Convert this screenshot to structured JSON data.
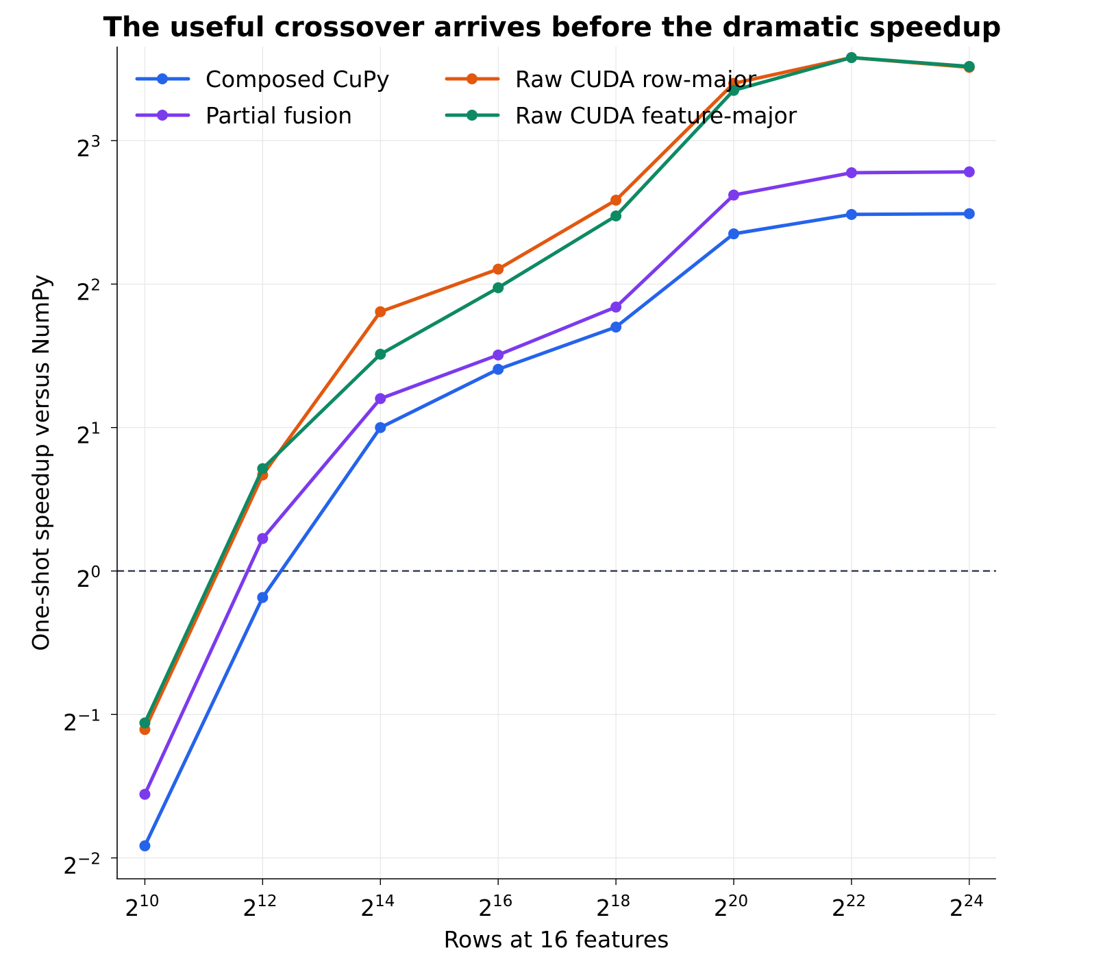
{
  "chart_data": {
    "type": "line",
    "title": "The useful crossover arrives before the dramatic speedup",
    "xlabel": "Rows at 16 features",
    "ylabel": "One-shot speedup versus NumPy",
    "x_scale": "log2",
    "y_scale": "log2",
    "x": [
      1024,
      4096,
      16384,
      65536,
      262144,
      1048576,
      4194304,
      16777216
    ],
    "x_tick_labels": [
      {
        "base": "2",
        "exp": "10"
      },
      {
        "base": "2",
        "exp": "12"
      },
      {
        "base": "2",
        "exp": "14"
      },
      {
        "base": "2",
        "exp": "16"
      },
      {
        "base": "2",
        "exp": "18"
      },
      {
        "base": "2",
        "exp": "20"
      },
      {
        "base": "2",
        "exp": "22"
      },
      {
        "base": "2",
        "exp": "24"
      }
    ],
    "y_ticks": [
      0.25,
      0.5,
      1,
      2,
      4,
      8
    ],
    "y_tick_labels": [
      {
        "base": "2",
        "exp": "−2"
      },
      {
        "base": "2",
        "exp": "−1"
      },
      {
        "base": "2",
        "exp": "0"
      },
      {
        "base": "2",
        "exp": "1"
      },
      {
        "base": "2",
        "exp": "2"
      },
      {
        "base": "2",
        "exp": "3"
      }
    ],
    "xlim": [
      739,
      23000000
    ],
    "ylim": [
      0.226,
      12.6
    ],
    "grid": true,
    "reference_line": {
      "y": 1,
      "style": "dashed",
      "color": "#2e3650"
    },
    "legend_position": "top-left",
    "series": [
      {
        "name": "Composed CuPy",
        "color": "#2563eb",
        "values": [
          0.265,
          0.88,
          2.0,
          2.65,
          3.25,
          5.1,
          5.6,
          5.62
        ]
      },
      {
        "name": "Partial fusion",
        "color": "#7c3aed",
        "values": [
          0.34,
          1.17,
          2.3,
          2.84,
          3.58,
          6.15,
          6.85,
          6.88
        ]
      },
      {
        "name": "Raw CUDA row-major",
        "color": "#e2580f",
        "values": [
          0.465,
          1.59,
          3.5,
          4.3,
          6.0,
          10.55,
          11.95,
          11.4
        ]
      },
      {
        "name": "Raw CUDA feature-major",
        "color": "#0d8a63",
        "values": [
          0.48,
          1.64,
          2.85,
          3.93,
          5.56,
          10.2,
          11.95,
          11.45
        ]
      }
    ]
  }
}
